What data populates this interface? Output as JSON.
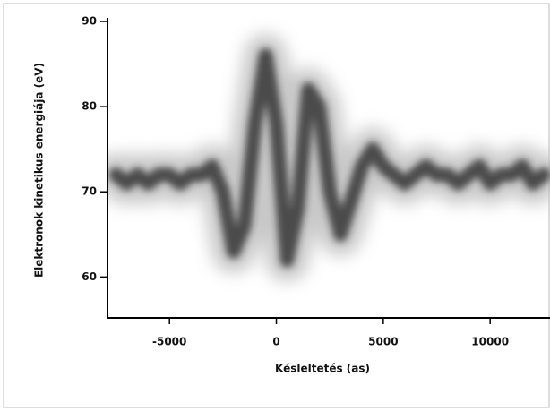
{
  "chart_data": {
    "type": "streak",
    "x_label": "Késleltetés (as)",
    "y_label": "Elektronok kinetikus energiája (eV)",
    "x": [
      -7500,
      -7000,
      -6500,
      -6000,
      -5500,
      -5000,
      -4500,
      -4000,
      -3500,
      -3000,
      -2500,
      -2000,
      -1500,
      -1000,
      -500,
      0,
      500,
      1000,
      1500,
      2000,
      2500,
      3000,
      3500,
      4000,
      4500,
      5000,
      5500,
      6000,
      6500,
      7000,
      7500,
      8000,
      8500,
      9000,
      9500,
      10000,
      10500,
      11000,
      11500,
      12000,
      12500
    ],
    "series": [
      {
        "color": "#222222",
        "values": [
          72,
          71,
          72,
          71,
          72,
          72,
          71,
          72,
          72,
          73,
          70,
          63,
          66,
          78,
          86,
          78,
          62,
          68,
          82,
          80,
          70,
          65,
          69,
          73,
          75,
          73,
          72,
          71,
          72,
          73,
          72,
          72,
          71,
          72,
          73,
          71,
          72,
          72,
          73,
          71,
          72
        ]
      }
    ],
    "xlim": [
      -7900,
      12800
    ],
    "ylim": [
      55.2,
      90
    ],
    "xticks": [
      -5000,
      0,
      5000,
      10000
    ],
    "yticks": [
      60,
      70,
      80,
      90
    ]
  }
}
